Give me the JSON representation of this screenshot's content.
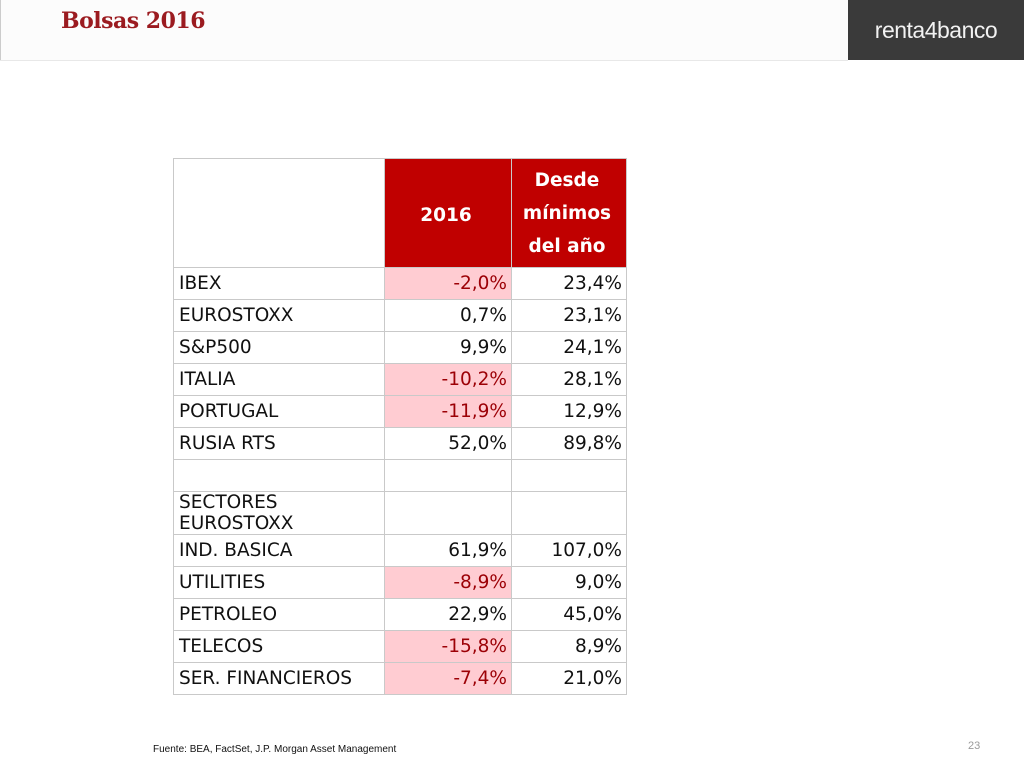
{
  "header": {
    "title": "Bolsas 2016",
    "logo": "renta4banco"
  },
  "table": {
    "columns": [
      "",
      "2016",
      "Desde mínimos del año"
    ],
    "rows": [
      {
        "label": "IBEX",
        "y2016": "-2,0%",
        "desde": "23,4%"
      },
      {
        "label": "EUROSTOXX",
        "y2016": "0,7%",
        "desde": "23,1%"
      },
      {
        "label": "S&P500",
        "y2016": "9,9%",
        "desde": "24,1%"
      },
      {
        "label": "ITALIA",
        "y2016": "-10,2%",
        "desde": "28,1%"
      },
      {
        "label": "PORTUGAL",
        "y2016": "-11,9%",
        "desde": "12,9%"
      },
      {
        "label": "RUSIA RTS",
        "y2016": "52,0%",
        "desde": "89,8%"
      },
      {
        "label": "",
        "y2016": "",
        "desde": ""
      },
      {
        "label": "SECTORES EUROSTOXX",
        "y2016": "",
        "desde": ""
      },
      {
        "label": "IND. BASICA",
        "y2016": "61,9%",
        "desde": "107,0%"
      },
      {
        "label": "UTILITIES",
        "y2016": "-8,9%",
        "desde": "9,0%"
      },
      {
        "label": "PETROLEO",
        "y2016": "22,9%",
        "desde": "45,0%"
      },
      {
        "label": "TELECOS",
        "y2016": "-15,8%",
        "desde": "8,9%"
      },
      {
        "label": "SER. FINANCIEROS",
        "y2016": "-7,4%",
        "desde": "21,0%"
      }
    ]
  },
  "colors": {
    "header_red": "#c00000",
    "negative_fill": "#ffccd2",
    "negative_text": "#9c0006",
    "title": "#9b1b20"
  },
  "footer": {
    "source": "Fuente: BEA, FactSet, J.P. Morgan Asset Management",
    "page_number": "23"
  }
}
